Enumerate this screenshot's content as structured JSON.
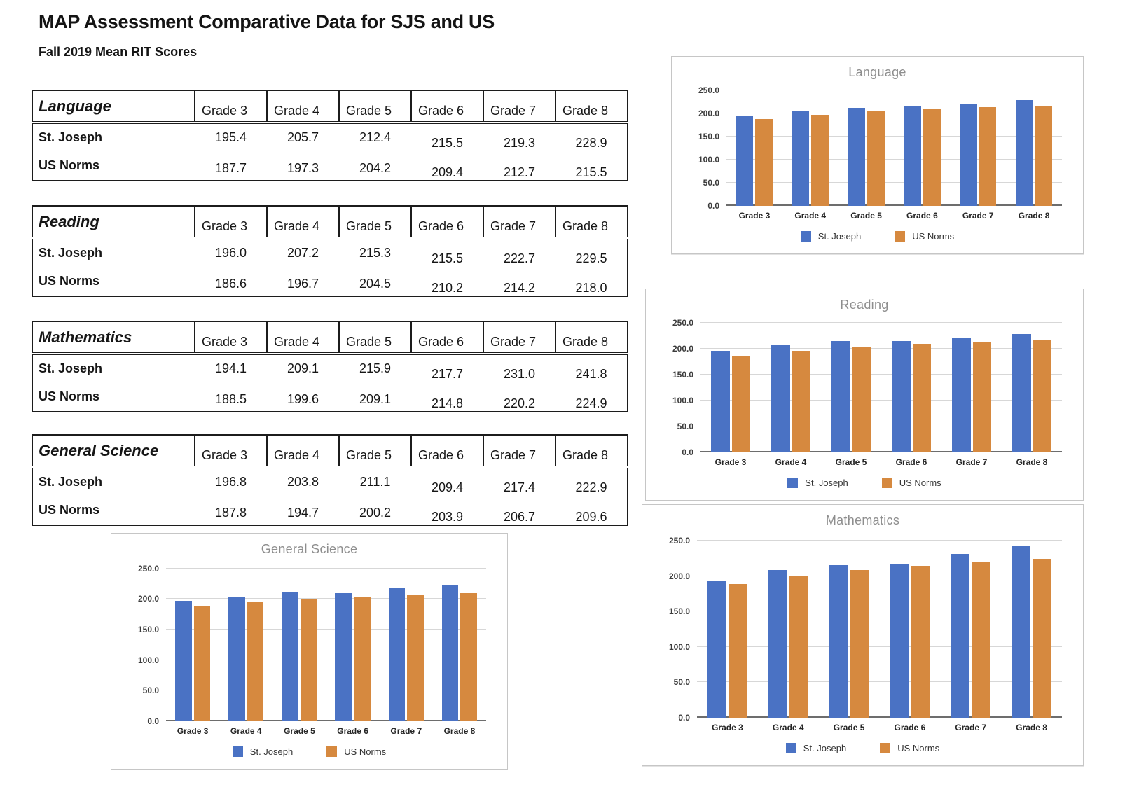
{
  "page": {
    "title": "MAP Assessment Comparative Data for SJS and US",
    "subtitle": "Fall 2019 Mean RIT Scores"
  },
  "colors": {
    "st_joseph_blue": "#4A72C4",
    "us_norms_orange": "#D6893F",
    "gridline": "#D7D7D7",
    "axis": "#6D6D6D",
    "chart_title_gray": "#8E8E8E"
  },
  "series_names": [
    "St. Joseph",
    "US Norms"
  ],
  "grades": [
    "Grade 3",
    "Grade 4",
    "Grade 5",
    "Grade 6",
    "Grade 7",
    "Grade 8"
  ],
  "tables": [
    {
      "subject": "Language",
      "columns": [
        "Grade 3",
        "Grade 4",
        "Grade 5",
        "Grade 6",
        "Grade 7",
        "Grade 8"
      ],
      "rows": [
        {
          "label": "St. Joseph",
          "values": [
            "195.4",
            "205.7",
            "212.4",
            "215.5",
            "219.3",
            "228.9"
          ]
        },
        {
          "label": "US Norms",
          "values": [
            "187.7",
            "197.3",
            "204.2",
            "209.4",
            "212.7",
            "215.5"
          ]
        }
      ]
    },
    {
      "subject": "Reading",
      "columns": [
        "Grade 3",
        "Grade 4",
        "Grade 5",
        "Grade 6",
        "Grade 7",
        "Grade 8"
      ],
      "rows": [
        {
          "label": "St. Joseph",
          "values": [
            "196.0",
            "207.2",
            "215.3",
            "215.5",
            "222.7",
            "229.5"
          ]
        },
        {
          "label": "US Norms",
          "values": [
            "186.6",
            "196.7",
            "204.5",
            "210.2",
            "214.2",
            "218.0"
          ]
        }
      ]
    },
    {
      "subject": "Mathematics",
      "columns": [
        "Grade 3",
        "Grade 4",
        "Grade 5",
        "Grade 6",
        "Grade 7",
        "Grade 8"
      ],
      "rows": [
        {
          "label": "St. Joseph",
          "values": [
            "194.1",
            "209.1",
            "215.9",
            "217.7",
            "231.0",
            "241.8"
          ]
        },
        {
          "label": "US Norms",
          "values": [
            "188.5",
            "199.6",
            "209.1",
            "214.8",
            "220.2",
            "224.9"
          ]
        }
      ]
    },
    {
      "subject": "General Science",
      "columns": [
        "Grade 3",
        "Grade 4",
        "Grade 5",
        "Grade 6",
        "Grade 7",
        "Grade 8"
      ],
      "rows": [
        {
          "label": "St. Joseph",
          "values": [
            "196.8",
            "203.8",
            "211.1",
            "209.4",
            "217.4",
            "222.9"
          ]
        },
        {
          "label": "US Norms",
          "values": [
            "187.8",
            "194.7",
            "200.2",
            "203.9",
            "206.7",
            "209.6"
          ]
        }
      ]
    }
  ],
  "chart_data": [
    {
      "type": "bar",
      "title": "Language",
      "categories": [
        "Grade 3",
        "Grade 4",
        "Grade 5",
        "Grade 6",
        "Grade 7",
        "Grade 8"
      ],
      "series": [
        {
          "name": "St. Joseph",
          "values": [
            195.4,
            205.7,
            212.4,
            215.5,
            219.3,
            228.9
          ]
        },
        {
          "name": "US Norms",
          "values": [
            187.7,
            197.3,
            204.2,
            209.4,
            212.7,
            215.5
          ]
        }
      ],
      "ylim": [
        0,
        250
      ],
      "yticks": [
        "0.0",
        "50.0",
        "100.0",
        "150.0",
        "200.0",
        "250.0"
      ],
      "grid": true,
      "legend_position": "bottom"
    },
    {
      "type": "bar",
      "title": "Reading",
      "categories": [
        "Grade 3",
        "Grade 4",
        "Grade 5",
        "Grade 6",
        "Grade 7",
        "Grade 8"
      ],
      "series": [
        {
          "name": "St. Joseph",
          "values": [
            196.0,
            207.2,
            215.3,
            215.5,
            222.7,
            229.5
          ]
        },
        {
          "name": "US Norms",
          "values": [
            186.6,
            196.7,
            204.5,
            210.2,
            214.2,
            218.0
          ]
        }
      ],
      "ylim": [
        0,
        250
      ],
      "yticks": [
        "0.0",
        "50.0",
        "100.0",
        "150.0",
        "200.0",
        "250.0"
      ],
      "grid": true,
      "legend_position": "bottom"
    },
    {
      "type": "bar",
      "title": "Mathematics",
      "categories": [
        "Grade 3",
        "Grade 4",
        "Grade 5",
        "Grade 6",
        "Grade 7",
        "Grade 8"
      ],
      "series": [
        {
          "name": "St. Joseph",
          "values": [
            194.1,
            209.1,
            215.9,
            217.7,
            231.0,
            241.8
          ]
        },
        {
          "name": "US Norms",
          "values": [
            188.5,
            199.6,
            209.1,
            214.8,
            220.2,
            224.9
          ]
        }
      ],
      "ylim": [
        0,
        250
      ],
      "yticks": [
        "0.0",
        "50.0",
        "100.0",
        "150.0",
        "200.0",
        "250.0"
      ],
      "grid": true,
      "legend_position": "bottom"
    },
    {
      "type": "bar",
      "title": "General Science",
      "categories": [
        "Grade 3",
        "Grade 4",
        "Grade 5",
        "Grade 6",
        "Grade 7",
        "Grade 8"
      ],
      "series": [
        {
          "name": "St. Joseph",
          "values": [
            196.8,
            203.8,
            211.1,
            209.4,
            217.4,
            222.9
          ]
        },
        {
          "name": "US Norms",
          "values": [
            187.8,
            194.7,
            200.2,
            203.9,
            206.7,
            209.6
          ]
        }
      ],
      "ylim": [
        0,
        250
      ],
      "yticks": [
        "0.0",
        "50.0",
        "100.0",
        "150.0",
        "200.0",
        "250.0"
      ],
      "grid": true,
      "legend_position": "bottom"
    }
  ]
}
